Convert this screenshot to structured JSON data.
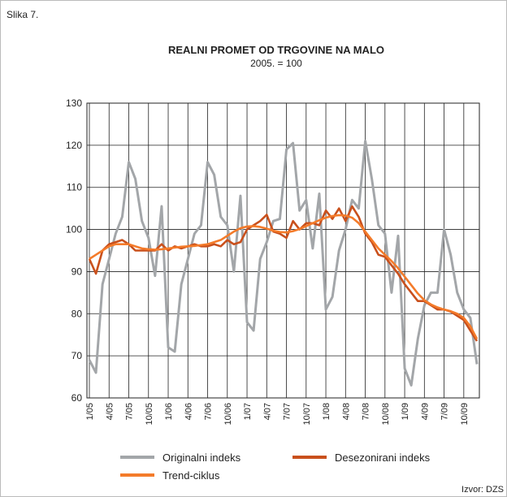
{
  "chart_data": {
    "type": "line",
    "figure_label": "Slika 7.",
    "title": "REALNI PROMET OD TRGOVINE NA MALO",
    "subtitle": "2005. = 100",
    "source": "Izvor: DZS",
    "categories": [
      "1/05",
      null,
      null,
      "4/05",
      null,
      null,
      "7/05",
      null,
      null,
      "10/05",
      null,
      null,
      "1/06",
      null,
      null,
      "4/06",
      null,
      null,
      "7/06",
      null,
      null,
      "10/06",
      null,
      null,
      "1/07",
      null,
      null,
      "4/07",
      null,
      null,
      "7/07",
      null,
      null,
      "10/07",
      null,
      null,
      "1/08",
      null,
      null,
      "4/08",
      null,
      null,
      "7/08",
      null,
      null,
      "10/08",
      null,
      null,
      "1/09",
      null,
      null,
      "4/09",
      null,
      null,
      "7/09",
      null,
      null,
      "10/09",
      null,
      null
    ],
    "series": [
      {
        "name": "Originalni indeks",
        "color": "#a3a6a9",
        "values": [
          69,
          66,
          87,
          93,
          99,
          103,
          116,
          112,
          102,
          98,
          89,
          105.5,
          72,
          71,
          87,
          93,
          99,
          101,
          116,
          113,
          103,
          101,
          90,
          108,
          78,
          76,
          93,
          97,
          102,
          102.5,
          119,
          120.5,
          104.5,
          107,
          95.5,
          108.5,
          81,
          84,
          95,
          100,
          107,
          105,
          121,
          112,
          101,
          99,
          85,
          98.5,
          67,
          63,
          74,
          82,
          85,
          85,
          100,
          94,
          85,
          81,
          79,
          68
        ]
      },
      {
        "name": "Desezonirani indeks",
        "color": "#c9501c",
        "values": [
          93,
          89.5,
          95,
          96.5,
          97,
          97.5,
          96.5,
          95,
          95,
          95,
          95,
          96.5,
          95,
          96,
          95.5,
          96,
          96.5,
          96,
          96,
          96.5,
          96,
          97.5,
          96.5,
          97,
          100,
          101,
          102,
          103.5,
          99.5,
          99,
          98,
          102,
          100,
          101.5,
          101.5,
          101,
          104.5,
          102.5,
          105,
          102,
          105.5,
          103,
          99,
          97,
          94,
          93.5,
          91.5,
          89.5,
          87,
          85,
          83,
          83,
          82,
          81,
          81,
          80.5,
          79.5,
          78.5,
          76,
          73.5
        ]
      },
      {
        "name": "Trend-ciklus",
        "color": "#f47b2a",
        "values": [
          93,
          94,
          95,
          96,
          96.5,
          96.5,
          96.5,
          96,
          95.5,
          95.3,
          95.2,
          95.3,
          95.5,
          95.7,
          95.9,
          96,
          96.1,
          96.3,
          96.5,
          97,
          97.5,
          98.5,
          99.5,
          100.3,
          100.7,
          100.8,
          100.6,
          100.2,
          99.7,
          99.4,
          99.3,
          99.6,
          100.1,
          100.8,
          101.5,
          102.2,
          102.8,
          103.2,
          103.4,
          103.3,
          102.8,
          101.5,
          99.5,
          97.5,
          95.5,
          94,
          92.5,
          90.8,
          88.8,
          86.8,
          84.8,
          83.2,
          82.2,
          81.5,
          81,
          80.6,
          80,
          79,
          77,
          74
        ]
      }
    ],
    "ylim": [
      60,
      130
    ],
    "yticks": [
      60,
      70,
      80,
      90,
      100,
      110,
      120,
      130
    ],
    "grid": true
  }
}
